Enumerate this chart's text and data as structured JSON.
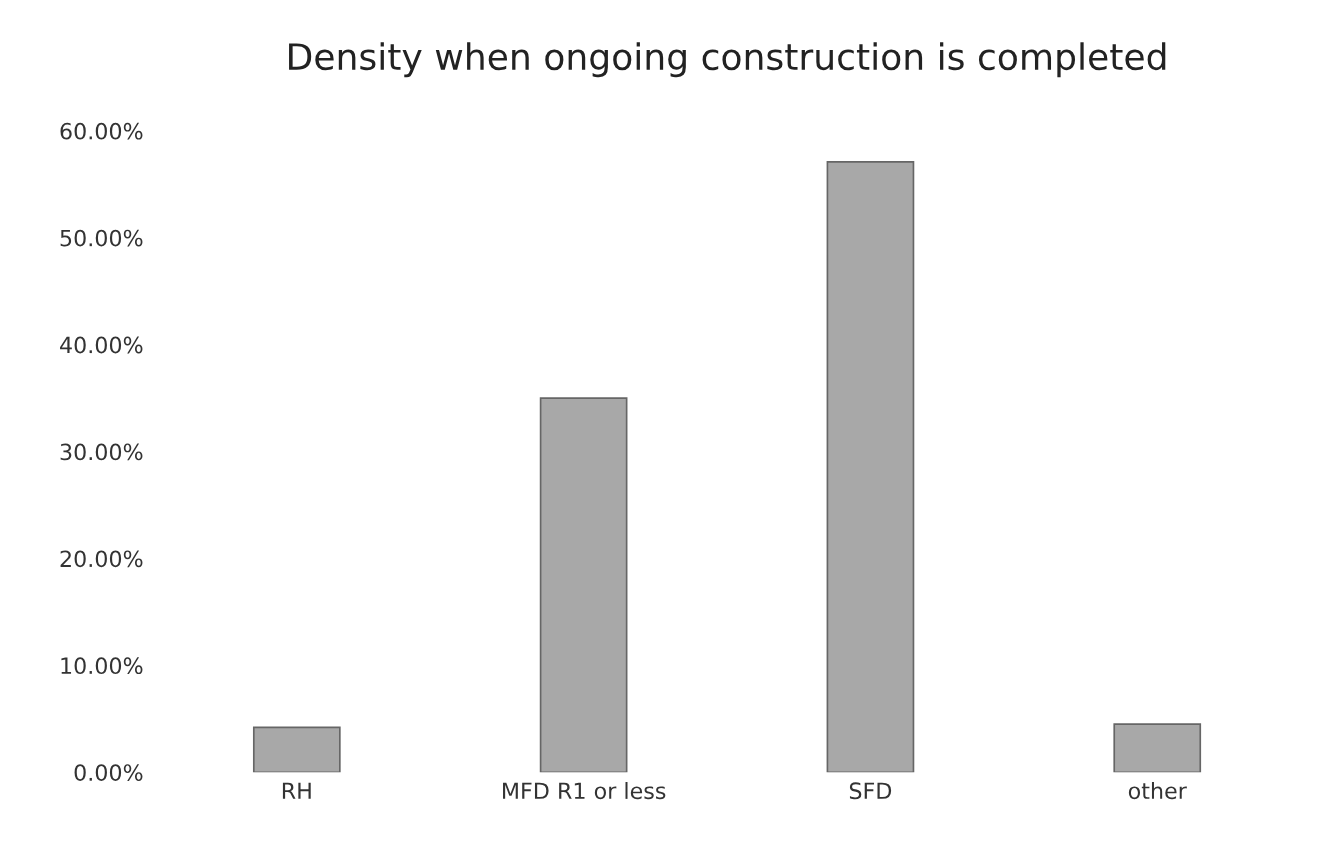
{
  "chart_data": {
    "type": "bar",
    "title": "Density when ongoing construction is completed",
    "categories": [
      "RH",
      "MFD R1 or less",
      "SFD",
      "other"
    ],
    "values": [
      4.2,
      35.0,
      57.1,
      4.5
    ],
    "color": "#a8a8a8",
    "ylim": [
      0,
      60
    ],
    "yticks": [
      {
        "value": 0,
        "label": "0.00%"
      },
      {
        "value": 10,
        "label": "10.00%"
      },
      {
        "value": 20,
        "label": "20.00%"
      },
      {
        "value": 30,
        "label": "30.00%"
      },
      {
        "value": 40,
        "label": "40.00%"
      },
      {
        "value": 50,
        "label": "50.00%"
      },
      {
        "value": 60,
        "label": "60.00%"
      }
    ],
    "grid": false
  }
}
